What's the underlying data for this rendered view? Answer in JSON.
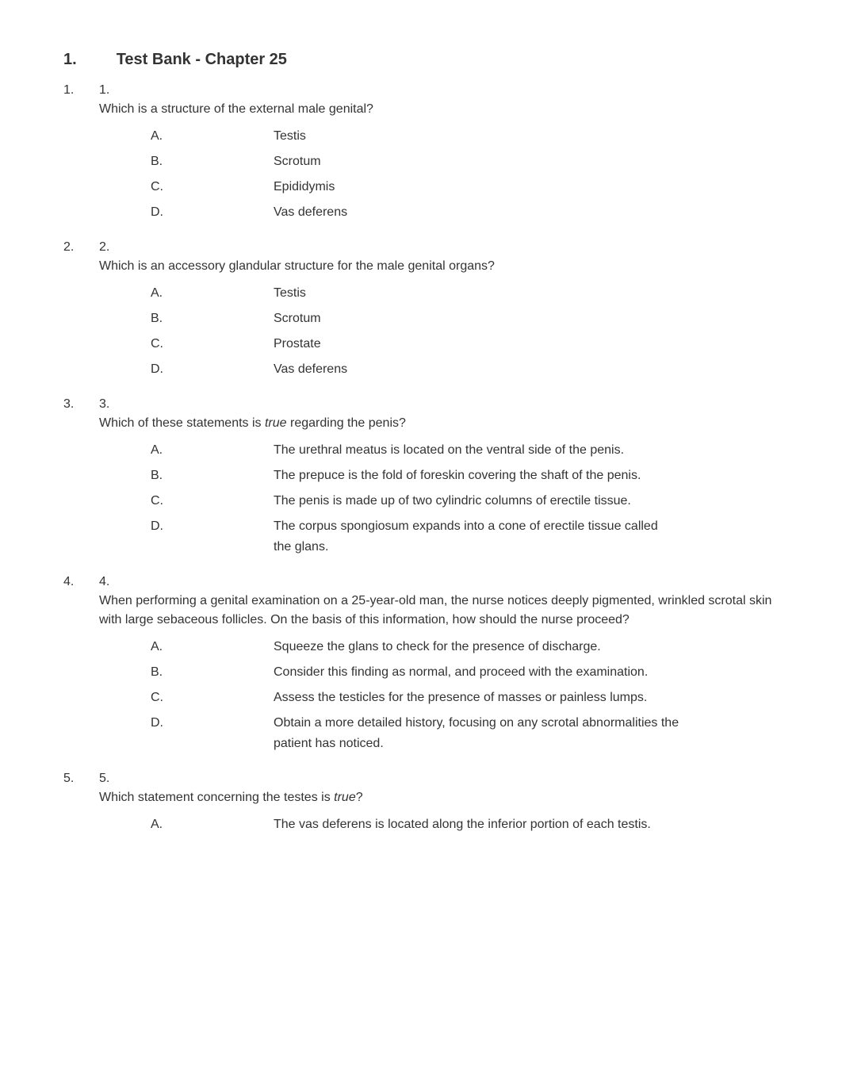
{
  "title": {
    "num": "1.",
    "text": "Test Bank - Chapter 25"
  },
  "questions": [
    {
      "outer_num": "1.",
      "inner_num": "1.",
      "stem_parts": [
        {
          "text": "Which is a structure of the external male genital?",
          "italic": false
        }
      ],
      "options": [
        {
          "letter": "A.",
          "text": "Testis",
          "continuation": null
        },
        {
          "letter": "B.",
          "text": "Scrotum",
          "continuation": null
        },
        {
          "letter": "C.",
          "text": "Epididymis",
          "continuation": null
        },
        {
          "letter": "D.",
          "text": "Vas deferens",
          "continuation": null
        }
      ]
    },
    {
      "outer_num": "2.",
      "inner_num": "2.",
      "stem_parts": [
        {
          "text": "Which is an accessory glandular structure for the male genital organs?",
          "italic": false
        }
      ],
      "options": [
        {
          "letter": "A.",
          "text": "Testis",
          "continuation": null
        },
        {
          "letter": "B.",
          "text": "Scrotum",
          "continuation": null
        },
        {
          "letter": "C.",
          "text": "Prostate",
          "continuation": null
        },
        {
          "letter": "D.",
          "text": "Vas deferens",
          "continuation": null
        }
      ]
    },
    {
      "outer_num": "3.",
      "inner_num": "3.",
      "stem_parts": [
        {
          "text": "Which of these statements is ",
          "italic": false
        },
        {
          "text": "true",
          "italic": true
        },
        {
          "text": " regarding the penis?",
          "italic": false
        }
      ],
      "options": [
        {
          "letter": "A.",
          "text": "The urethral meatus is located on the ventral side of the penis.",
          "continuation": null
        },
        {
          "letter": "B.",
          "text": "The prepuce is the fold of foreskin covering the shaft of the penis.",
          "continuation": null
        },
        {
          "letter": "C.",
          "text": "The penis is made up of two cylindric columns of erectile tissue.",
          "continuation": null
        },
        {
          "letter": "D.",
          "text": "The corpus spongiosum expands into a cone of erectile tissue called",
          "continuation_parts": [
            {
              "text": "the ",
              "italic": false
            },
            {
              "text": "glans",
              "italic": true
            },
            {
              "text": ".",
              "italic": false
            }
          ]
        }
      ]
    },
    {
      "outer_num": "4.",
      "inner_num": "4.",
      "stem_parts": [
        {
          "text": "When performing a genital examination on a 25-year-old man, the nurse notices deeply pigmented, wrinkled scrotal skin with large sebaceous follicles. On the basis of this information, how should the nurse proceed?",
          "italic": false
        }
      ],
      "options": [
        {
          "letter": "A.",
          "text": "Squeeze the glans to check for the presence of discharge.",
          "continuation": null
        },
        {
          "letter": "B.",
          "text": "Consider this finding as normal, and proceed with the examination.",
          "continuation": null
        },
        {
          "letter": "C.",
          "text": "Assess the testicles for the presence of masses or painless lumps.",
          "continuation": null
        },
        {
          "letter": "D.",
          "text": "Obtain a more detailed history, focusing on any scrotal abnormalities the",
          "continuation_parts": [
            {
              "text": "patient has noticed.",
              "italic": false
            }
          ]
        }
      ]
    },
    {
      "outer_num": "5.",
      "inner_num": "5.",
      "stem_parts": [
        {
          "text": "Which statement concerning the testes is ",
          "italic": false
        },
        {
          "text": "true",
          "italic": true
        },
        {
          "text": "?",
          "italic": false
        }
      ],
      "options": [
        {
          "letter": "A.",
          "text": "The vas deferens is located along the inferior portion of each testis.",
          "continuation": null
        }
      ]
    }
  ]
}
